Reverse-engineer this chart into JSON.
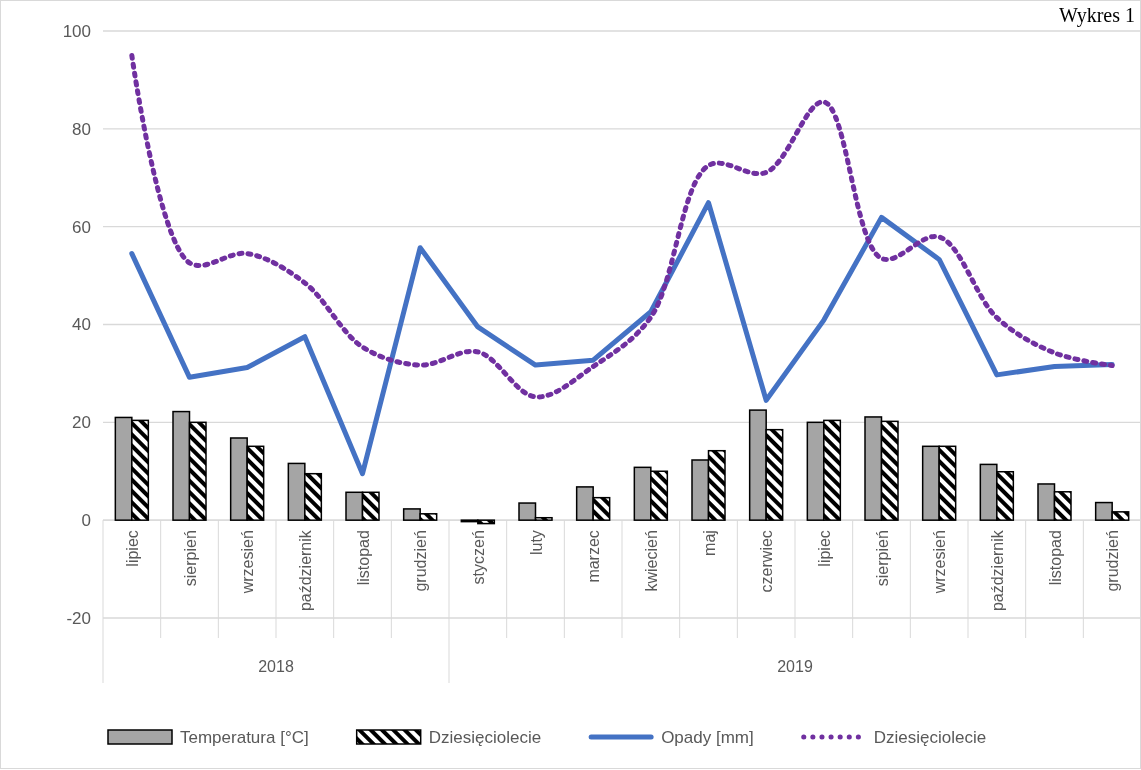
{
  "chart_data": {
    "type": "bar",
    "title": "Wykres 1",
    "categories": [
      "lipiec",
      "sierpień",
      "wrzesień",
      "październik",
      "listopad",
      "grudzień",
      "styczeń",
      "luty",
      "marzec",
      "kwiecień",
      "maj",
      "czerwiec",
      "lipiec",
      "sierpień",
      "wrzesień",
      "październik",
      "listopad",
      "grudzień"
    ],
    "annotations": [
      "2018",
      "2019"
    ],
    "series": [
      {
        "name": "Temperatura [°C]",
        "color": "#a5a5a5",
        "values": [
          21.0,
          22.2,
          16.8,
          11.6,
          5.7,
          2.3,
          -0.3,
          3.5,
          6.8,
          10.8,
          12.3,
          22.5,
          20.0,
          21.1,
          15.1,
          11.4,
          7.4,
          3.6
        ]
      },
      {
        "name": "Dziesięciolecie",
        "color": "#000000",
        "values": [
          20.4,
          20.0,
          15.1,
          9.5,
          5.7,
          1.3,
          -0.7,
          0.5,
          4.6,
          10.0,
          14.2,
          18.5,
          20.4,
          20.2,
          15.1,
          9.9,
          5.8,
          1.7
        ]
      },
      {
        "name": "Opady [mm]",
        "type": "line",
        "color": "#4472c4",
        "line_style": "solid",
        "values": [
          54.5,
          29.2,
          31.2,
          37.5,
          9.5,
          55.7,
          39.5,
          31.7,
          32.7,
          42.6,
          64.9,
          24.5,
          40.9,
          61.9,
          53.3,
          29.7,
          31.4,
          31.8
        ]
      },
      {
        "name": "Dziesięciolecie",
        "type": "line",
        "color": "#7030a0",
        "line_style": "dotted",
        "values": [
          95.0,
          52.6,
          54.5,
          48.5,
          35.4,
          31.7,
          34.4,
          25.2,
          31.4,
          41.5,
          72.5,
          71.1,
          85.5,
          53.5,
          57.9,
          41.4,
          34.2,
          31.6
        ]
      }
    ],
    "ylim": [
      -20,
      100
    ],
    "yticks": [
      -20,
      0,
      20,
      40,
      60,
      80,
      100
    ],
    "grid": "y",
    "legend": "bottom"
  }
}
